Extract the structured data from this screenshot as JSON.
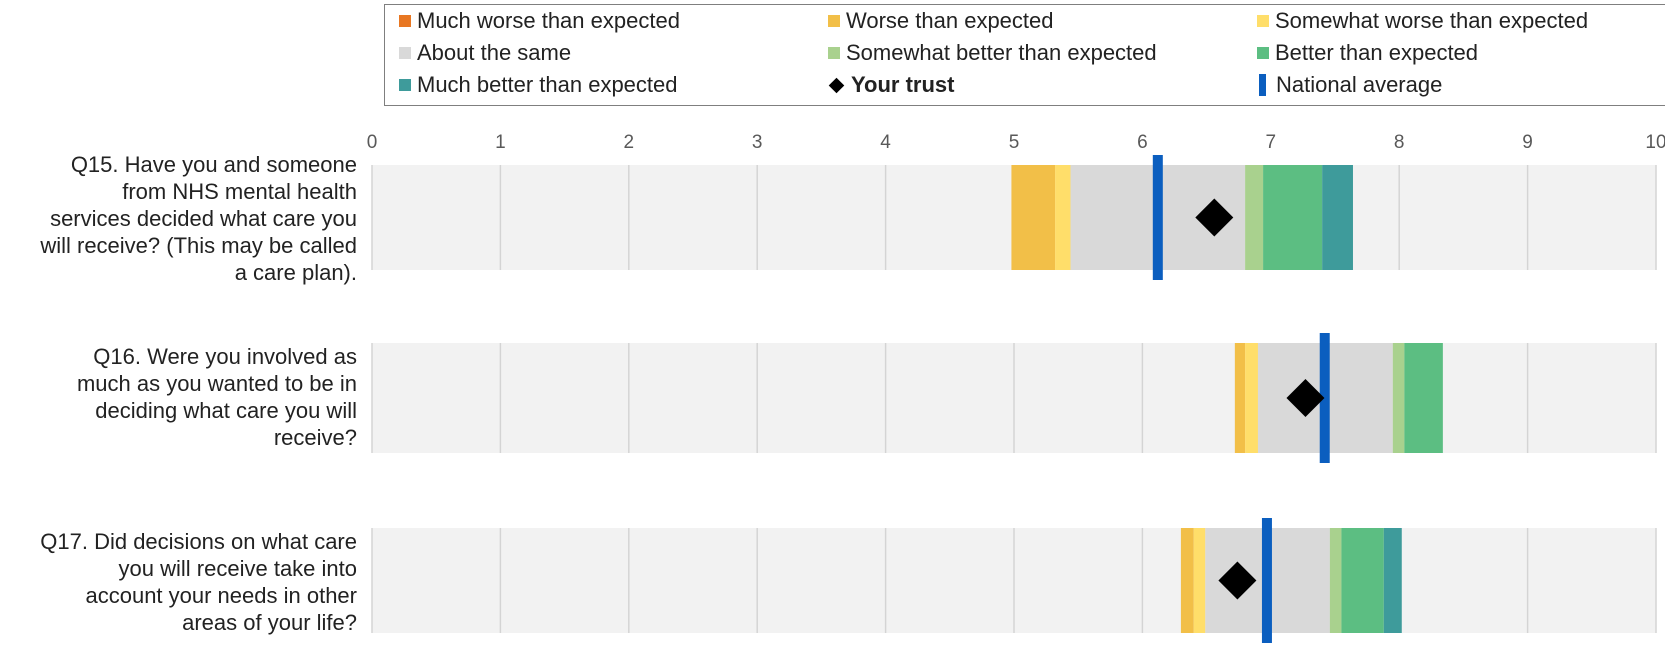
{
  "chart_data": {
    "type": "bar",
    "subtype": "horizontal banded range chart",
    "x_ticks": [
      "0",
      "1",
      "2",
      "3",
      "4",
      "5",
      "6",
      "7",
      "8",
      "9",
      "10"
    ],
    "xlim": [
      0,
      10
    ],
    "grid": true,
    "legend_placement": "top",
    "legend": [
      {
        "label": "Much worse than expected",
        "color": "#E87722",
        "marker": "square"
      },
      {
        "label": "Worse than expected",
        "color": "#F2BF48",
        "marker": "square"
      },
      {
        "label": "Somewhat worse than expected",
        "color": "#FFDE6A",
        "marker": "square"
      },
      {
        "label": "About the same",
        "color": "#D9D9D9",
        "marker": "square"
      },
      {
        "label": "Somewhat better than expected",
        "color": "#A9D18E",
        "marker": "square"
      },
      {
        "label": "Better than expected",
        "color": "#5CBE82",
        "marker": "square"
      },
      {
        "label": "Much better than expected",
        "color": "#3E9B9B",
        "marker": "square"
      },
      {
        "label": "Your trust",
        "color": "#000000",
        "marker": "diamond",
        "bold": true
      },
      {
        "label": "National average",
        "color": "#0B5EBF",
        "marker": "bar"
      }
    ],
    "questions": [
      {
        "label": "Q15. Have you and someone from NHS mental health services decided what care you will receive? (This may be called a care plan).",
        "label_lines": [
          "Q15. Have you and someone",
          "from NHS mental health",
          "services decided what care you",
          "will receive? (This may be called",
          "a care plan)."
        ],
        "bands": [
          {
            "category": "Worse than expected",
            "start": 4.98,
            "end": 5.32
          },
          {
            "category": "Somewhat worse than expected",
            "start": 5.32,
            "end": 5.44
          },
          {
            "category": "About the same",
            "start": 5.44,
            "end": 6.8
          },
          {
            "category": "Somewhat better than expected",
            "start": 6.8,
            "end": 6.94
          },
          {
            "category": "Better than expected",
            "start": 6.94,
            "end": 7.4
          },
          {
            "category": "Much better than expected",
            "start": 7.4,
            "end": 7.64
          }
        ],
        "your_trust": 6.56,
        "national_average": 6.12
      },
      {
        "label": "Q16. Were you involved as much as you wanted to be in deciding what care you will receive?",
        "label_lines": [
          "Q16. Were you involved as",
          "much as you wanted to be in",
          "deciding what care you will",
          "receive?"
        ],
        "bands": [
          {
            "category": "Worse than expected",
            "start": 6.72,
            "end": 6.8
          },
          {
            "category": "Somewhat worse than expected",
            "start": 6.8,
            "end": 6.9
          },
          {
            "category": "About the same",
            "start": 6.9,
            "end": 7.95
          },
          {
            "category": "Somewhat better than expected",
            "start": 7.95,
            "end": 8.04
          },
          {
            "category": "Better than expected",
            "start": 8.04,
            "end": 8.34
          }
        ],
        "your_trust": 7.27,
        "national_average": 7.42
      },
      {
        "label": "Q17. Did decisions on what care you will receive take into account your needs in other areas of your life?",
        "label_lines": [
          "Q17. Did decisions on what care",
          "you will receive take into",
          "account your needs in other",
          "areas of your life?"
        ],
        "bands": [
          {
            "category": "Worse than expected",
            "start": 6.3,
            "end": 6.4
          },
          {
            "category": "Somewhat worse than expected",
            "start": 6.4,
            "end": 6.49
          },
          {
            "category": "About the same",
            "start": 6.49,
            "end": 7.46
          },
          {
            "category": "Somewhat better than expected",
            "start": 7.46,
            "end": 7.55
          },
          {
            "category": "Better than expected",
            "start": 7.55,
            "end": 7.88
          },
          {
            "category": "Much better than expected",
            "start": 7.88,
            "end": 8.02
          }
        ],
        "your_trust": 6.74,
        "national_average": 6.97
      }
    ]
  }
}
